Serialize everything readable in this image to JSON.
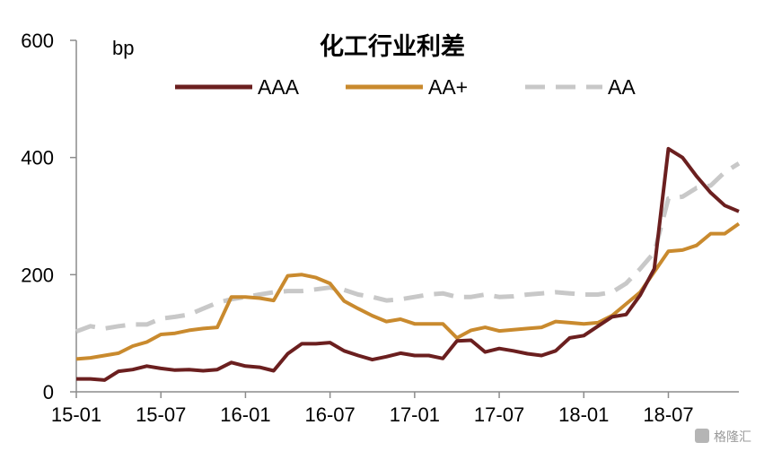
{
  "chart_data": {
    "type": "line",
    "title": "化工行业利差",
    "unit_label": "bp",
    "ylim": [
      0,
      600
    ],
    "y_ticks": [
      0,
      200,
      400,
      600
    ],
    "x_tick_labels": [
      "15-01",
      "15-07",
      "16-01",
      "16-07",
      "17-01",
      "17-07",
      "18-01",
      "18-07"
    ],
    "x_tick_months": [
      0,
      6,
      12,
      18,
      24,
      30,
      36,
      42
    ],
    "x_range_months": [
      0,
      47
    ],
    "legend_position": "top",
    "grid": false,
    "series": [
      {
        "name": "AAA",
        "color": "#6b1f1f",
        "dash": "solid",
        "values": [
          22,
          22,
          20,
          35,
          38,
          44,
          40,
          37,
          38,
          36,
          38,
          50,
          44,
          42,
          36,
          65,
          82,
          82,
          84,
          70,
          62,
          55,
          60,
          66,
          62,
          62,
          57,
          87,
          88,
          68,
          74,
          70,
          65,
          62,
          70,
          92,
          96,
          112,
          128,
          132,
          165,
          210,
          415,
          400,
          368,
          340,
          318,
          308
        ]
      },
      {
        "name": "AA+",
        "color": "#c98a2e",
        "dash": "solid",
        "values": [
          56,
          58,
          62,
          66,
          78,
          85,
          98,
          100,
          105,
          108,
          110,
          162,
          162,
          160,
          156,
          198,
          200,
          195,
          185,
          155,
          142,
          130,
          120,
          124,
          116,
          116,
          116,
          92,
          105,
          110,
          104,
          106,
          108,
          110,
          120,
          118,
          116,
          118,
          130,
          150,
          170,
          205,
          240,
          242,
          250,
          270,
          270,
          287
        ]
      },
      {
        "name": "AA",
        "color": "#c8c8c8",
        "dash": "dashed",
        "values": [
          103,
          112,
          108,
          112,
          115,
          115,
          125,
          128,
          132,
          142,
          152,
          158,
          162,
          166,
          170,
          172,
          172,
          175,
          178,
          174,
          166,
          162,
          156,
          158,
          162,
          166,
          168,
          162,
          162,
          166,
          162,
          163,
          166,
          168,
          170,
          168,
          166,
          166,
          170,
          185,
          210,
          238,
          330,
          333,
          348,
          352,
          375,
          390
        ]
      }
    ]
  },
  "watermark": "格隆汇"
}
